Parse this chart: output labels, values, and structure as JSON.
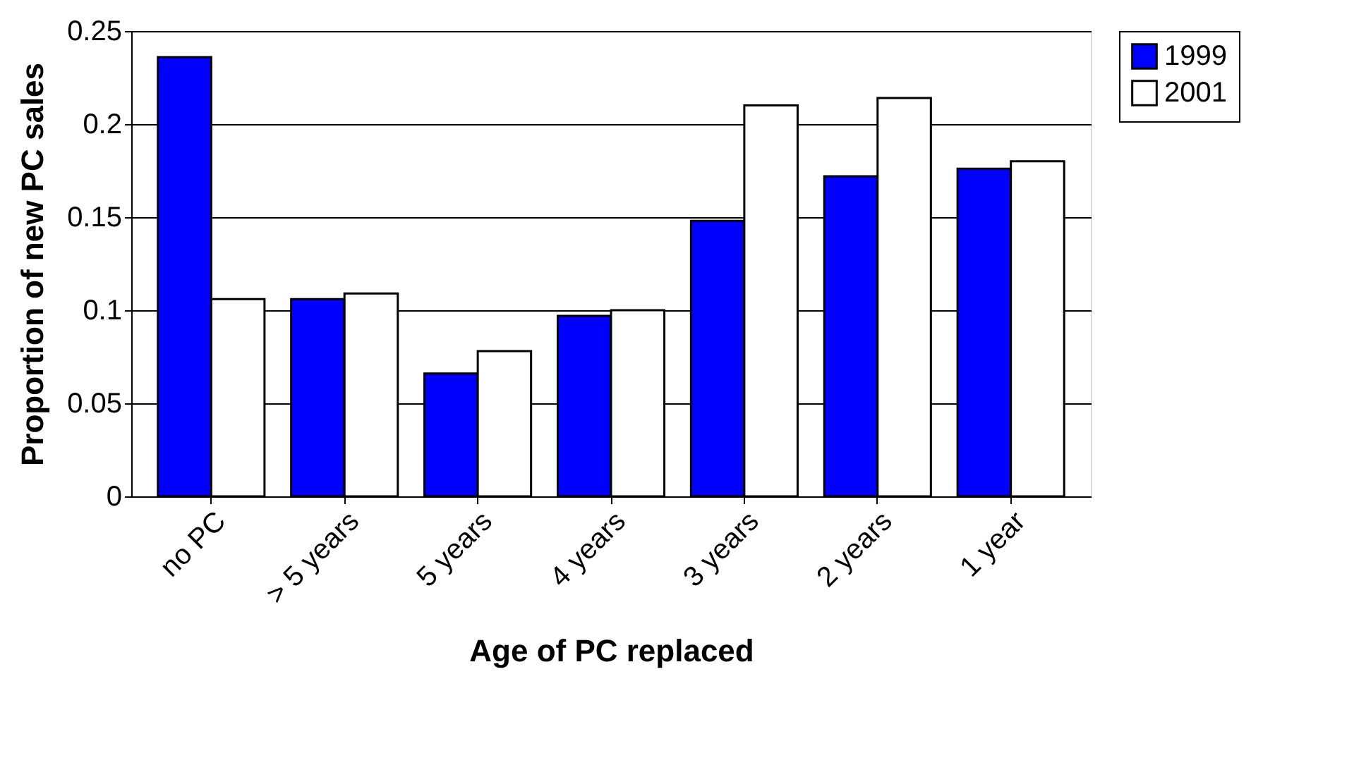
{
  "chart_data": {
    "type": "bar",
    "xlabel": "Age of PC replaced",
    "ylabel": "Proportion of new PC sales",
    "categories": [
      "no PC",
      "> 5 years",
      "5 years",
      "4 years",
      "3 years",
      "2 years",
      "1 year"
    ],
    "series": [
      {
        "name": "1999",
        "color": "#0000ff",
        "values": [
          0.236,
          0.106,
          0.066,
          0.097,
          0.148,
          0.172,
          0.176
        ]
      },
      {
        "name": "2001",
        "color": "#ffffff",
        "values": [
          0.106,
          0.109,
          0.078,
          0.1,
          0.21,
          0.214,
          0.18
        ]
      }
    ],
    "ylim": [
      0,
      0.25
    ],
    "yticks": [
      0,
      0.05,
      0.1,
      0.15,
      0.2,
      0.25
    ],
    "grid": "y",
    "legend": "right"
  }
}
